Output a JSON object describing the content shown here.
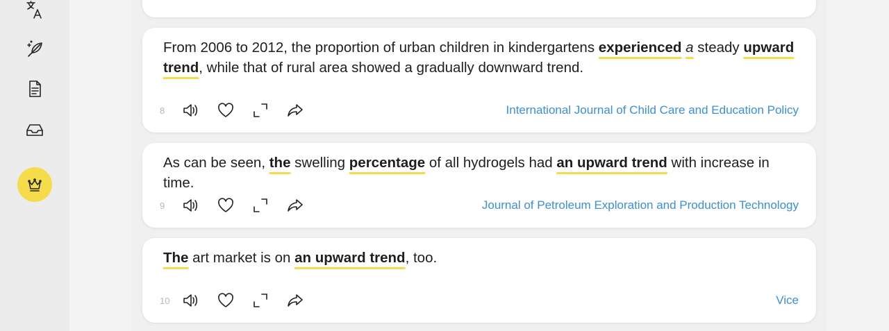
{
  "sidebar": {
    "icons": [
      "translate-icon",
      "feather-pen-icon",
      "document-icon",
      "inbox-icon",
      "crown-icon"
    ]
  },
  "cards": [
    {
      "number": "8",
      "source": "International Journal of Child Care and Education Policy",
      "segments": [
        {
          "t": "From 2006 to 2012, the proportion of urban children in kindergartens "
        },
        {
          "t": "experienced",
          "bold": true,
          "hl": true
        },
        {
          "t": " "
        },
        {
          "t": "a",
          "italic": true,
          "hl": true
        },
        {
          "t": " steady "
        },
        {
          "t": "upward trend",
          "bold": true,
          "hl": true
        },
        {
          "t": ", while that of rural area showed a gradually downward trend."
        }
      ]
    },
    {
      "number": "9",
      "source": "Journal of Petroleum Exploration and Production Technology",
      "segments": [
        {
          "t": "As can be seen, "
        },
        {
          "t": "the",
          "bold": true,
          "hl": true
        },
        {
          "t": " swelling "
        },
        {
          "t": "percentage",
          "bold": true,
          "hl": true
        },
        {
          "t": " of all hydrogels had "
        },
        {
          "t": "an upward trend",
          "bold": true,
          "hl": true
        },
        {
          "t": " with increase in time."
        }
      ]
    },
    {
      "number": "10",
      "source": "Vice",
      "segments": [
        {
          "t": "The",
          "bold": true,
          "hl": true
        },
        {
          "t": " art market is on "
        },
        {
          "t": "an upward trend",
          "bold": true,
          "hl": true
        },
        {
          "t": ", too."
        }
      ]
    }
  ],
  "actions": [
    "speaker-icon",
    "heart-icon",
    "expand-icon",
    "share-icon"
  ],
  "colors": {
    "accent": "#f5dc4a",
    "link": "#3b8fd9"
  }
}
